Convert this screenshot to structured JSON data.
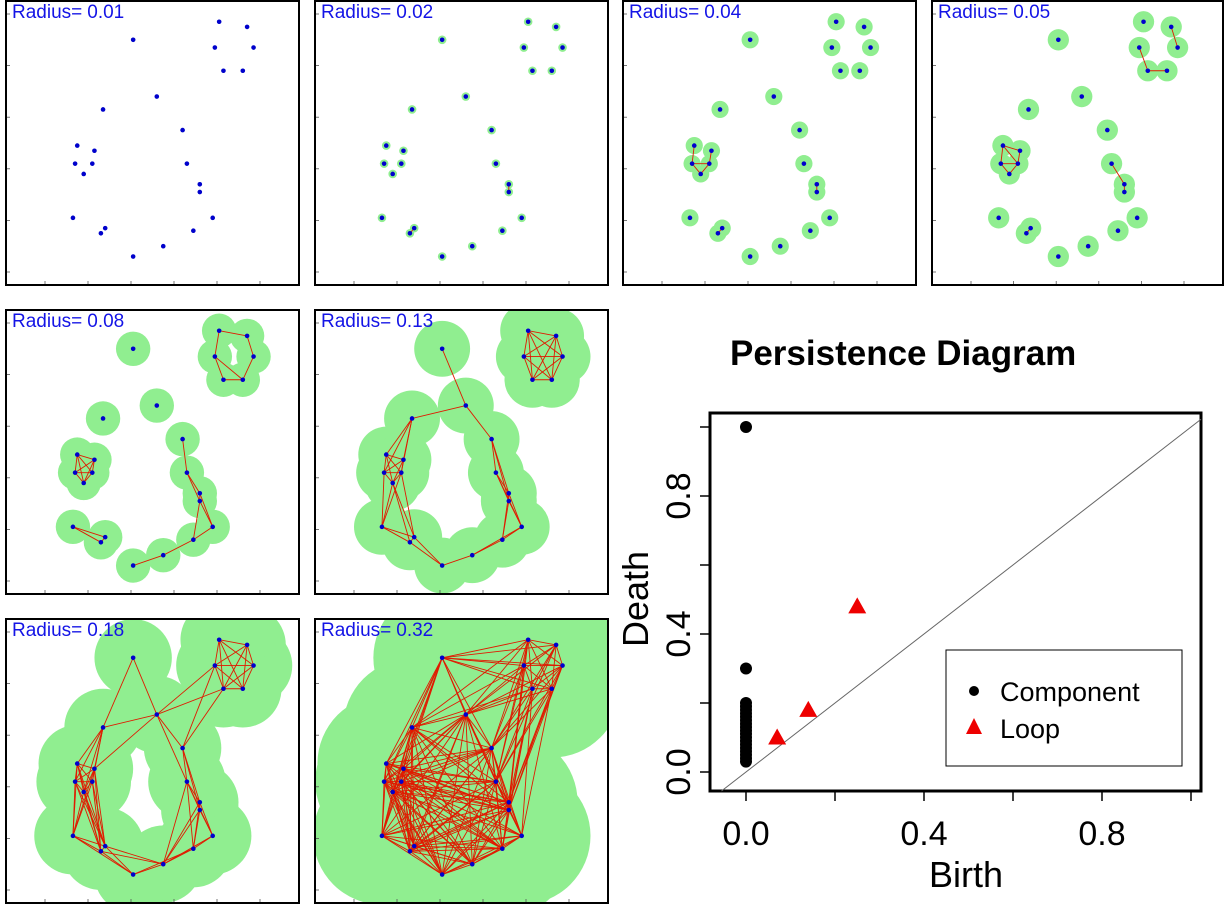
{
  "colors": {
    "ball": "#90ee90",
    "point": "#0000cd",
    "edge": "#e01a00",
    "label": "#1414e6",
    "component": "#000000",
    "loop": "#ee0000"
  },
  "radius_prefix": "Radius=",
  "point_cloud": [
    [
      0.41,
      0.9
    ],
    [
      0.52,
      0.68
    ],
    [
      0.27,
      0.63
    ],
    [
      0.15,
      0.49
    ],
    [
      0.14,
      0.42
    ],
    [
      0.22,
      0.42
    ],
    [
      0.18,
      0.38
    ],
    [
      0.23,
      0.47
    ],
    [
      0.64,
      0.55
    ],
    [
      0.66,
      0.42
    ],
    [
      0.72,
      0.34
    ],
    [
      0.72,
      0.31
    ],
    [
      0.78,
      0.21
    ],
    [
      0.69,
      0.16
    ],
    [
      0.55,
      0.1
    ],
    [
      0.41,
      0.06
    ],
    [
      0.28,
      0.17
    ],
    [
      0.26,
      0.15
    ],
    [
      0.13,
      0.21
    ],
    [
      0.81,
      0.97
    ],
    [
      0.94,
      0.95
    ],
    [
      0.79,
      0.87
    ],
    [
      0.97,
      0.87
    ],
    [
      0.83,
      0.78
    ],
    [
      0.92,
      0.78
    ]
  ],
  "filtration": [
    {
      "radius": "0.01",
      "r": 0.01
    },
    {
      "radius": "0.02",
      "r": 0.02
    },
    {
      "radius": "0.04",
      "r": 0.04
    },
    {
      "radius": "0.05",
      "r": 0.05
    },
    {
      "radius": "0.08",
      "r": 0.08
    },
    {
      "radius": "0.13",
      "r": 0.13
    },
    {
      "radius": "0.18",
      "r": 0.18
    },
    {
      "radius": "0.32",
      "r": 0.32
    }
  ],
  "chart_data": {
    "type": "scatter",
    "title": "Persistence Diagram",
    "xlabel": "Birth",
    "ylabel": "Death",
    "xlim": [
      0,
      1.05
    ],
    "ylim": [
      0,
      1.05
    ],
    "xticks": [
      "0.0",
      "0.4",
      "0.8"
    ],
    "yticks": [
      "0.0",
      "0.4",
      "0.8"
    ],
    "diagonal": true,
    "legend_position": "bottom-right",
    "series": [
      {
        "name": "Component",
        "marker": "circle",
        "points": [
          [
            0,
            1.0
          ],
          [
            0,
            0.3
          ],
          [
            0,
            0.2
          ],
          [
            0,
            0.19
          ],
          [
            0,
            0.18
          ],
          [
            0,
            0.17
          ],
          [
            0,
            0.16
          ],
          [
            0,
            0.15
          ],
          [
            0,
            0.14
          ],
          [
            0,
            0.13
          ],
          [
            0,
            0.12
          ],
          [
            0,
            0.11
          ],
          [
            0,
            0.1
          ],
          [
            0,
            0.09
          ],
          [
            0,
            0.08
          ],
          [
            0,
            0.07
          ],
          [
            0,
            0.06
          ],
          [
            0,
            0.05
          ],
          [
            0,
            0.04
          ],
          [
            0,
            0.03
          ]
        ]
      },
      {
        "name": "Loop",
        "marker": "triangle",
        "points": [
          [
            0.07,
            0.1
          ],
          [
            0.14,
            0.18
          ],
          [
            0.25,
            0.48
          ]
        ]
      }
    ]
  }
}
